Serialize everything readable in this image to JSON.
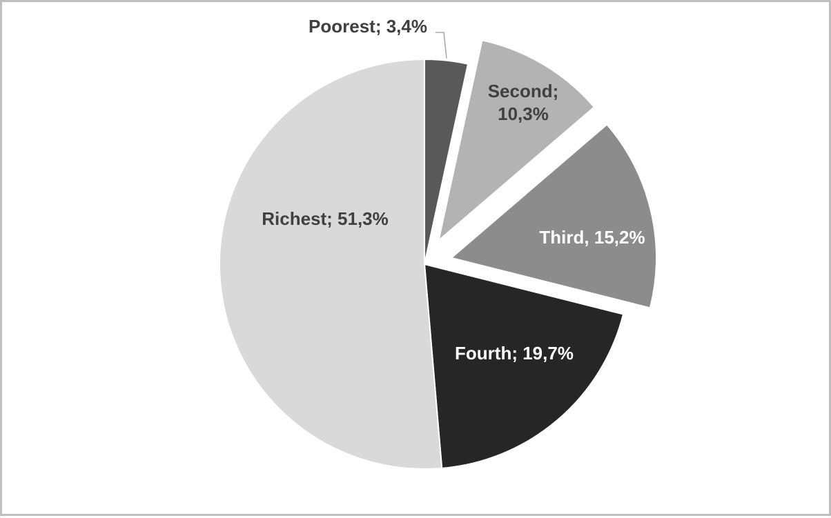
{
  "chart_data": {
    "type": "pie",
    "title": "",
    "slices": [
      {
        "label": "Poorest; 3,4%",
        "name": "Poorest",
        "value": 3.4,
        "color": "#595959",
        "exploded": false,
        "label_color": "#404040",
        "label_lines": [
          "Poorest; 3,4%"
        ]
      },
      {
        "label": "Second; 10,3%",
        "name": "Second",
        "value": 10.3,
        "color": "#b3b3b3",
        "exploded": true,
        "label_color": "#404040",
        "label_lines": [
          "Second;",
          "10,3%"
        ]
      },
      {
        "label": "Third, 15,2%",
        "name": "Third",
        "value": 15.2,
        "color": "#8c8c8c",
        "exploded": true,
        "label_color": "#ffffff",
        "label_lines": [
          "Third, 15,2%"
        ]
      },
      {
        "label": "Fourth; 19,7%",
        "name": "Fourth",
        "value": 19.7,
        "color": "#262626",
        "exploded": false,
        "label_color": "#ffffff",
        "label_lines": [
          "Fourth; 19,7%"
        ]
      },
      {
        "label": "Richest; 51,3%",
        "name": "Richest",
        "value": 51.3,
        "color": "#d9d9d9",
        "exploded": false,
        "label_color": "#404040",
        "label_lines": [
          "Richest; 51,3%"
        ]
      }
    ],
    "legend": "none"
  }
}
